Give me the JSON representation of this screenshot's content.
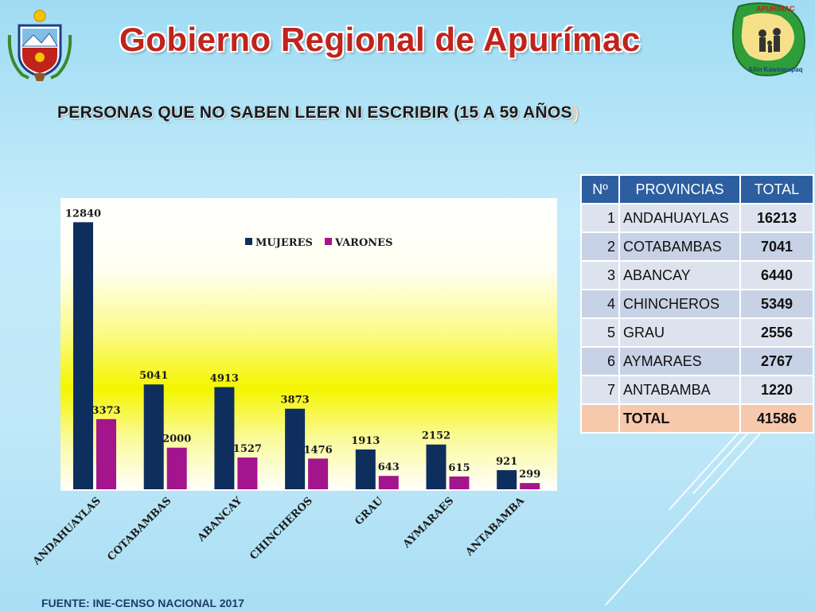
{
  "header": {
    "title": "Gobierno Regional de Apurímac",
    "subtitle_main": "PERSONAS QUE NO SABEN LEER NI ESCRIBIR (15 A 59 AÑOS",
    "subtitle_paren": ")"
  },
  "logos": {
    "left": "coat-of-arms",
    "right": "apurimac-map-logo",
    "right_text_top": "APURÍMAC",
    "right_text_bottom": "Allin Kawsanapaq"
  },
  "chart_data": {
    "type": "bar",
    "categories": [
      "ANDAHUAYLAS",
      "COTABAMBAS",
      "ABANCAY",
      "CHINCHEROS",
      "GRAU",
      "AYMARAES",
      "ANTABAMBA"
    ],
    "series": [
      {
        "name": "MUJERES",
        "values": [
          12840,
          5041,
          4913,
          3873,
          1913,
          2152,
          921
        ],
        "color": "#0e2f5e"
      },
      {
        "name": "VARONES",
        "values": [
          3373,
          2000,
          1527,
          1476,
          643,
          615,
          299
        ],
        "color": "#a4148c"
      }
    ],
    "ylim": [
      0,
      14000
    ],
    "legend_position": "top-center",
    "grid": false
  },
  "table": {
    "headers": [
      "Nº",
      "PROVINCIAS",
      "TOTAL"
    ],
    "rows": [
      {
        "n": "1",
        "province": "ANDAHUAYLAS",
        "total": "16213"
      },
      {
        "n": "2",
        "province": "COTABAMBAS",
        "total": "7041"
      },
      {
        "n": "3",
        "province": "ABANCAY",
        "total": "6440"
      },
      {
        "n": "4",
        "province": "CHINCHEROS",
        "total": "5349"
      },
      {
        "n": "5",
        "province": "GRAU",
        "total": "2556"
      },
      {
        "n": "6",
        "province": "AYMARAES",
        "total": "2767"
      },
      {
        "n": "7",
        "province": "ANTABAMBA",
        "total": "1220"
      }
    ],
    "total_row": {
      "n": "",
      "label": "TOTAL",
      "total": "41586"
    }
  },
  "footer": {
    "source": "FUENTE: INE-CENSO NACIONAL 2017"
  }
}
